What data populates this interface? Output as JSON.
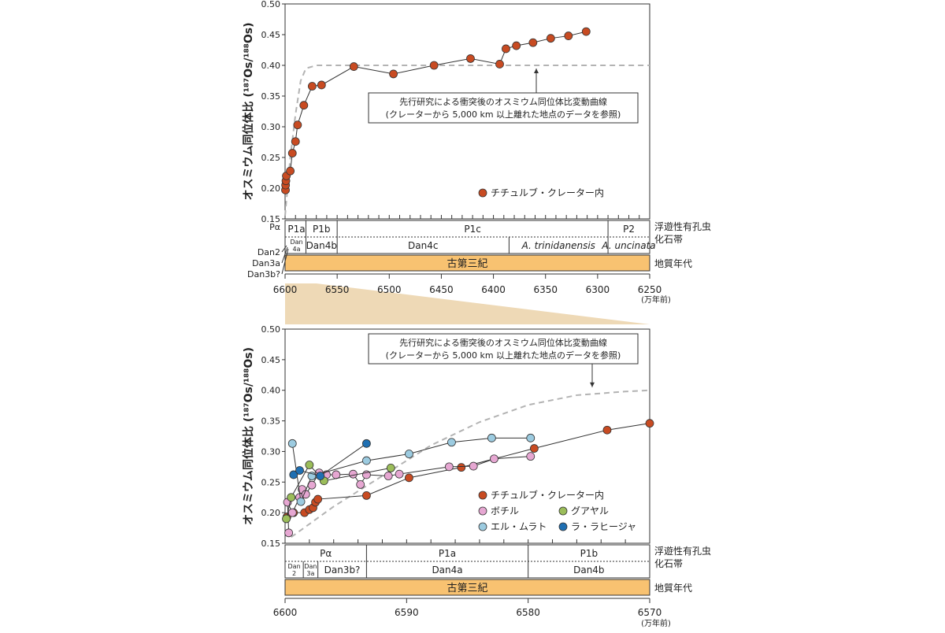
{
  "colors": {
    "chicxulub": "#c84b22",
    "bochil": "#e6a7d2",
    "guayal": "#9bbd5a",
    "el_mulato": "#9ccbe0",
    "la_lajilla": "#1f6fb2",
    "paleogene_band": "#f8c271",
    "zoom_wedge": "#eed9b6",
    "reference_curve": "#b3b3b3",
    "line": "#333333"
  },
  "y_axis_label": "オスミウム同位体比 (¹⁸⁷Os/¹⁸⁸Os)",
  "x_unit": "(万年前)",
  "reference_label_line1": "先行研究による衝突後のオスミウム同位体比変動曲線",
  "reference_label_line2": "(クレーターから 5,000 km 以上離れた地点のデータを参照)",
  "strat_labels": {
    "foram_zone_line1": "浮遊性有孔虫",
    "foram_zone_line2": "化石帯",
    "geologic_age": "地質年代",
    "paleogene": "古第三紀"
  },
  "chart_data": [
    {
      "type": "line",
      "xlim": [
        6600,
        6250
      ],
      "ylim": [
        0.15,
        0.5
      ],
      "x_ticks": [
        6600,
        6550,
        6500,
        6450,
        6400,
        6350,
        6300,
        6250
      ],
      "y_ticks": [
        0.15,
        0.2,
        0.25,
        0.3,
        0.35,
        0.4,
        0.45,
        0.5
      ],
      "grid": false,
      "legend_position": "lower-right",
      "series": [
        {
          "name": "チチュルブ・クレーター内",
          "color_key": "chicxulub",
          "points": [
            [
              6599.6,
              0.197
            ],
            [
              6599.5,
              0.205
            ],
            [
              6599.2,
              0.212
            ],
            [
              6598.8,
              0.22
            ],
            [
              6595,
              0.228
            ],
            [
              6593,
              0.257
            ],
            [
              6590,
              0.276
            ],
            [
              6588,
              0.303
            ],
            [
              6582,
              0.335
            ],
            [
              6574,
              0.366
            ],
            [
              6565,
              0.368
            ],
            [
              6534,
              0.398
            ],
            [
              6496,
              0.386
            ],
            [
              6457,
              0.4
            ],
            [
              6422,
              0.411
            ],
            [
              6394,
              0.402
            ],
            [
              6388,
              0.427
            ],
            [
              6378,
              0.432
            ],
            [
              6362,
              0.437
            ],
            [
              6345,
              0.444
            ],
            [
              6328,
              0.448
            ],
            [
              6311,
              0.455
            ]
          ]
        }
      ],
      "reference_curve": [
        [
          6600,
          0.155
        ],
        [
          6595,
          0.25
        ],
        [
          6590,
          0.32
        ],
        [
          6585,
          0.375
        ],
        [
          6580,
          0.395
        ],
        [
          6570,
          0.4
        ],
        [
          6500,
          0.4
        ],
        [
          6250,
          0.4
        ]
      ],
      "zones_upper": [
        {
          "label": "P1a",
          "x0": 6598,
          "x1": 6580
        },
        {
          "label": "P1b",
          "x0": 6580,
          "x1": 6550
        },
        {
          "label": "P1c",
          "x0": 6550,
          "x1": 6290
        },
        {
          "label": "P2",
          "x0": 6290,
          "x1": 6250
        }
      ],
      "zones_lower": [
        {
          "label": "Dan\n4a",
          "x0": 6598,
          "x1": 6580
        },
        {
          "label": "Dan4b",
          "x0": 6580,
          "x1": 6550
        },
        {
          "label": "Dan4c",
          "x0": 6550,
          "x1": 6385
        },
        {
          "label": "A. trinidanensis",
          "x0": 6385,
          "x1": 6290,
          "italic": true
        },
        {
          "label": "A. uncinata",
          "x0": 6290,
          "x1": 6250,
          "italic": true
        }
      ],
      "side_labels": [
        "Pα",
        "Dan2",
        "Dan3a",
        "Dan3b?"
      ]
    },
    {
      "type": "line",
      "xlim": [
        6600,
        6570
      ],
      "ylim": [
        0.15,
        0.5
      ],
      "x_ticks": [
        6600,
        6590,
        6580,
        6570
      ],
      "y_ticks": [
        0.15,
        0.2,
        0.25,
        0.3,
        0.35,
        0.4,
        0.45,
        0.5
      ],
      "grid": false,
      "legend_position": "lower-right",
      "series": [
        {
          "name": "チチュルブ・クレーター内",
          "color_key": "chicxulub",
          "points": [
            [
              6599.85,
              0.193
            ],
            [
              6599.3,
              0.2
            ],
            [
              6598.4,
              0.2
            ],
            [
              6598,
              0.205
            ],
            [
              6597.7,
              0.208
            ],
            [
              6597.5,
              0.217
            ],
            [
              6597.3,
              0.222
            ],
            [
              6593.3,
              0.228
            ],
            [
              6589.8,
              0.257
            ],
            [
              6585.5,
              0.274
            ],
            [
              6579.5,
              0.305
            ],
            [
              6573.5,
              0.335
            ],
            [
              6570,
              0.346
            ]
          ]
        },
        {
          "name": "ボチル",
          "color_key": "bochil",
          "points": [
            [
              6599.7,
              0.167
            ],
            [
              6599.8,
              0.217
            ],
            [
              6599.4,
              0.2
            ],
            [
              6598.8,
              0.225
            ],
            [
              6598.6,
              0.238
            ],
            [
              6598.3,
              0.23
            ],
            [
              6597.8,
              0.245
            ],
            [
              6597.2,
              0.265
            ],
            [
              6596.6,
              0.262
            ],
            [
              6595.8,
              0.262
            ],
            [
              6594.4,
              0.263
            ],
            [
              6593.8,
              0.246
            ],
            [
              6593.3,
              0.262
            ],
            [
              6591.5,
              0.26
            ],
            [
              6590.6,
              0.263
            ],
            [
              6586.5,
              0.275
            ],
            [
              6584.5,
              0.276
            ],
            [
              6582.8,
              0.288
            ],
            [
              6579.8,
              0.292
            ]
          ]
        },
        {
          "name": "グアヤル",
          "color_key": "guayal",
          "points": [
            [
              6599.9,
              0.19
            ],
            [
              6599.5,
              0.225
            ],
            [
              6598.0,
              0.278
            ],
            [
              6596.8,
              0.252
            ],
            [
              6591.3,
              0.273
            ]
          ]
        },
        {
          "name": "エル・ムラト",
          "color_key": "el_mulato",
          "points": [
            [
              6599.4,
              0.313
            ],
            [
              6598.7,
              0.218
            ],
            [
              6597.8,
              0.26
            ],
            [
              6593.3,
              0.285
            ],
            [
              6589.8,
              0.296
            ],
            [
              6586.3,
              0.315
            ],
            [
              6583.0,
              0.322
            ],
            [
              6579.8,
              0.322
            ]
          ]
        },
        {
          "name": "ラ・ラヒージャ",
          "color_key": "la_lajilla",
          "points": [
            [
              6599.3,
              0.262
            ],
            [
              6598.8,
              0.269
            ],
            [
              6597.1,
              0.26
            ],
            [
              6593.3,
              0.313
            ]
          ]
        }
      ],
      "reference_curve": [
        [
          6599.5,
          0.16
        ],
        [
          6596,
          0.21
        ],
        [
          6592,
          0.26
        ],
        [
          6588,
          0.31
        ],
        [
          6584,
          0.348
        ],
        [
          6580,
          0.376
        ],
        [
          6576,
          0.392
        ],
        [
          6572,
          0.398
        ],
        [
          6570,
          0.4
        ]
      ],
      "zones_upper": [
        {
          "label": "Pα",
          "x0": 6600,
          "x1": 6593.3
        },
        {
          "label": "P1a",
          "x0": 6593.3,
          "x1": 6580
        },
        {
          "label": "P1b",
          "x0": 6580,
          "x1": 6570
        }
      ],
      "zones_lower": [
        {
          "label": "Dan\n2",
          "x0": 6600,
          "x1": 6598.5
        },
        {
          "label": "Dan\n3a",
          "x0": 6598.5,
          "x1": 6597.3
        },
        {
          "label": "Dan3b?",
          "x0": 6597.3,
          "x1": 6593.3
        },
        {
          "label": "Dan4a",
          "x0": 6593.3,
          "x1": 6580
        },
        {
          "label": "Dan4b",
          "x0": 6580,
          "x1": 6570
        }
      ]
    }
  ]
}
